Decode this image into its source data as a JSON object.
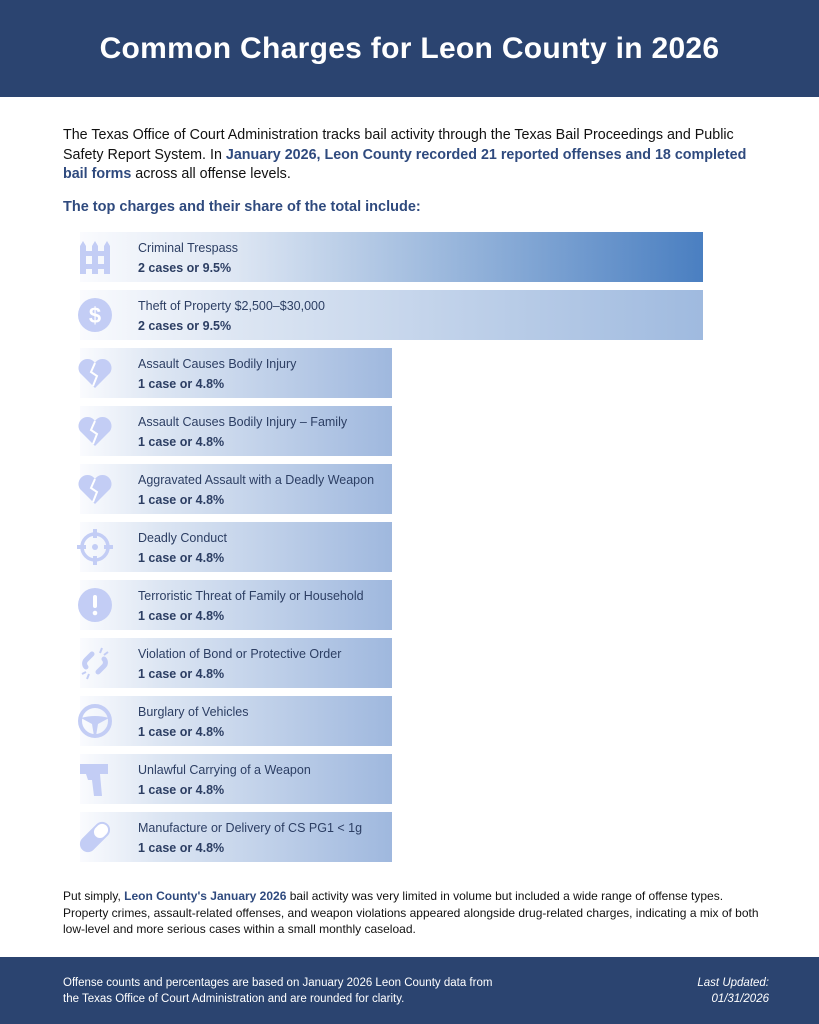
{
  "header": {
    "title": "Common Charges for Leon County in 2026"
  },
  "intro": {
    "p1": "The Texas Office of Court Administration tracks bail activity through the Texas Bail Proceedings and Public Safety Report System. In ",
    "highlight": "January 2026, Leon County recorded 21 reported offenses and 18 completed bail forms",
    "p2": " across all offense levels."
  },
  "subheading": "The top charges and their share of the total include:",
  "colors": {
    "header_bg": "#2b4470",
    "accent": "#2f4a7e",
    "icon": "#c3cdf5",
    "bar_end": "#4a7fc1"
  },
  "charges": [
    {
      "label": "Criminal Trespass",
      "value": "2 cases or 9.5%",
      "cases": 2,
      "percent": 9.5,
      "icon": "fence-icon"
    },
    {
      "label": "Theft of Property $2,500–$30,000",
      "value": "2 cases or 9.5%",
      "cases": 2,
      "percent": 9.5,
      "icon": "dollar-icon"
    },
    {
      "label": "Assault Causes Bodily Injury",
      "value": "1 case or 4.8%",
      "cases": 1,
      "percent": 4.8,
      "icon": "broken-heart-icon"
    },
    {
      "label": "Assault Causes Bodily Injury – Family",
      "value": "1 case or 4.8%",
      "cases": 1,
      "percent": 4.8,
      "icon": "broken-heart-icon"
    },
    {
      "label": "Aggravated Assault with a Deadly Weapon",
      "value": "1 case or 4.8%",
      "cases": 1,
      "percent": 4.8,
      "icon": "broken-heart-icon"
    },
    {
      "label": "Deadly Conduct",
      "value": "1 case or 4.8%",
      "cases": 1,
      "percent": 4.8,
      "icon": "crosshair-icon"
    },
    {
      "label": "Terroristic Threat of Family or Household",
      "value": "1 case or 4.8%",
      "cases": 1,
      "percent": 4.8,
      "icon": "exclamation-icon"
    },
    {
      "label": "Violation of Bond or Protective Order",
      "value": "1 case or 4.8%",
      "cases": 1,
      "percent": 4.8,
      "icon": "broken-link-icon"
    },
    {
      "label": "Burglary of Vehicles",
      "value": "1 case or 4.8%",
      "cases": 1,
      "percent": 4.8,
      "icon": "steering-wheel-icon"
    },
    {
      "label": "Unlawful Carrying of a Weapon",
      "value": "1 case or 4.8%",
      "cases": 1,
      "percent": 4.8,
      "icon": "pistol-icon"
    },
    {
      "label": "Manufacture or Delivery of CS PG1 < 1g",
      "value": "1 case or 4.8%",
      "cases": 1,
      "percent": 4.8,
      "icon": "pill-icon"
    }
  ],
  "summary": {
    "p1": "Put simply, ",
    "highlight": "Leon County's January 2026",
    "p2": " bail activity was very limited in volume but included a wide range of offense types. Property crimes, assault-related offenses, and weapon violations appeared alongside drug-related charges, indicating a mix of both low-level and more serious cases within a small monthly caseload."
  },
  "footer": {
    "note": "Offense counts and percentages are based on January 2026 Leon County data from the Texas Office of Court Administration and are rounded for clarity.",
    "updated_label": "Last Updated:",
    "updated_date": "01/31/2026"
  }
}
